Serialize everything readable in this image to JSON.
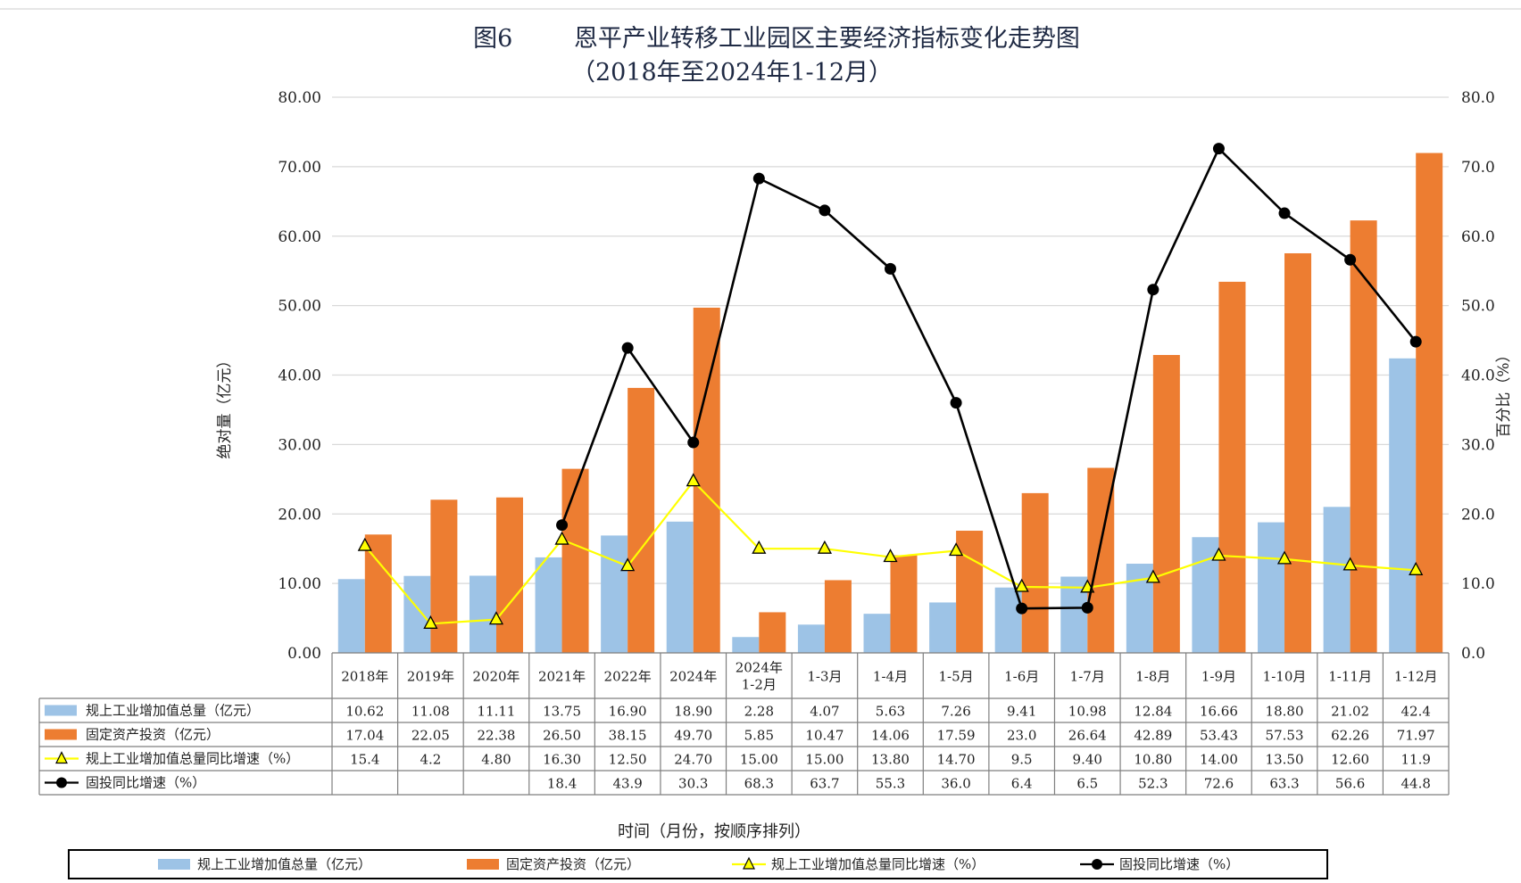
{
  "chart_data": {
    "type": "bar",
    "title": "图6        恩平产业转移工业园区主要经济指标变化走势图",
    "subtitle": "（2018年至2024年1-12月）",
    "xlabel": "时间（月份，按顺序排列）",
    "ylabel_left": "绝对量（亿元）",
    "ylabel_right": "百分比（%）",
    "ylim_left": [
      0,
      80
    ],
    "ylim_right": [
      0,
      80
    ],
    "yticks_left": [
      "0.00",
      "10.00",
      "20.00",
      "30.00",
      "40.00",
      "50.00",
      "60.00",
      "70.00",
      "80.00"
    ],
    "yticks_right": [
      "0.0",
      "10.0",
      "20.0",
      "30.0",
      "40.0",
      "50.0",
      "60.0",
      "70.0",
      "80.0"
    ],
    "grid": true,
    "legend_position": "bottom",
    "categories": [
      "2018年",
      "2019年",
      "2020年",
      "2021年",
      "2022年",
      "2024年",
      "2024年\n1-2月",
      "1-3月",
      "1-4月",
      "1-5月",
      "1-6月",
      "1-7月",
      "1-8月",
      "1-9月",
      "1-10月",
      "1-11月",
      "1-12月"
    ],
    "series": [
      {
        "name": "规上工业增加值总量（亿元）",
        "kind": "bar",
        "axis": "left",
        "color": "#9dc3e6",
        "values": [
          10.62,
          11.08,
          11.11,
          13.75,
          16.9,
          18.9,
          2.28,
          4.07,
          5.63,
          7.26,
          9.41,
          10.98,
          12.84,
          16.66,
          18.8,
          21.02,
          42.4
        ],
        "labels": [
          "10.62",
          "11.08",
          "11.11",
          "13.75",
          "16.90",
          "18.90",
          "2.28",
          "4.07",
          "5.63",
          "7.26",
          "9.41",
          "10.98",
          "12.84",
          "16.66",
          "18.80",
          "21.02",
          "42.4"
        ]
      },
      {
        "name": "固定资产投资（亿元）",
        "kind": "bar",
        "axis": "left",
        "color": "#ed7d31",
        "values": [
          17.04,
          22.05,
          22.38,
          26.5,
          38.15,
          49.7,
          5.85,
          10.47,
          14.06,
          17.59,
          23.0,
          26.64,
          42.89,
          53.43,
          57.53,
          62.26,
          71.97
        ],
        "labels": [
          "17.04",
          "22.05",
          "22.38",
          "26.50",
          "38.15",
          "49.70",
          "5.85",
          "10.47",
          "14.06",
          "17.59",
          "23.0",
          "26.64",
          "42.89",
          "53.43",
          "57.53",
          "62.26",
          "71.97"
        ]
      },
      {
        "name": "规上工业增加值总量同比增速（%）",
        "kind": "line",
        "axis": "right",
        "color": "#ffff00",
        "marker": "triangle",
        "values": [
          15.4,
          4.2,
          4.8,
          16.3,
          12.5,
          24.7,
          15.0,
          15.0,
          13.8,
          14.7,
          9.5,
          9.4,
          10.8,
          14.0,
          13.5,
          12.6,
          11.9
        ],
        "labels": [
          "15.4",
          "4.2",
          "4.80",
          "16.30",
          "12.50",
          "24.70",
          "15.00",
          "15.00",
          "13.80",
          "14.70",
          "9.5",
          "9.40",
          "10.80",
          "14.00",
          "13.50",
          "12.60",
          "11.9"
        ]
      },
      {
        "name": "固投同比增速（%）",
        "kind": "line",
        "axis": "right",
        "color": "#000000",
        "marker": "circle",
        "values": [
          null,
          null,
          null,
          18.4,
          43.9,
          30.3,
          68.3,
          63.7,
          55.3,
          36.0,
          6.4,
          6.5,
          52.3,
          72.6,
          63.3,
          56.6,
          44.8
        ],
        "labels": [
          "",
          "",
          "",
          "18.4",
          "43.9",
          "30.3",
          "68.3",
          "63.7",
          "55.3",
          "36.0",
          "6.4",
          "6.5",
          "52.3",
          "72.6",
          "63.3",
          "56.6",
          "44.8"
        ]
      }
    ]
  },
  "colors": {
    "grid": "#d9d9d9",
    "table_border": "#7f7f7f",
    "title": "#1f2a44"
  }
}
